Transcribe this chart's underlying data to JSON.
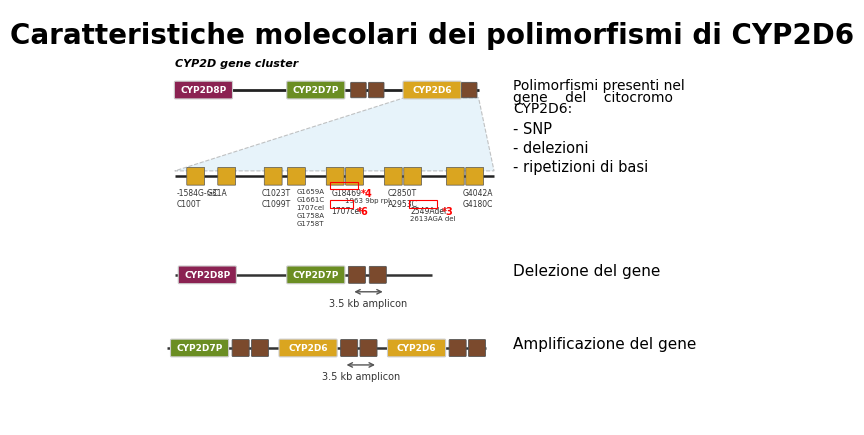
{
  "title": "Caratteristiche molecolari dei polimorfismi di CYP2D6",
  "title_fontsize": 20,
  "bg_color": "#ffffff",
  "text_right_1a": "Polimorfismi presenti nel",
  "text_right_1b": "gene    del    citocromo",
  "text_right_1c": "CYP2D6:",
  "text_right_2": "- SNP",
  "text_right_3": "- delezioni",
  "text_right_4": "- ripetizioni di basi",
  "text_delezione": "Delezione del gene",
  "text_amplificazione": "Amplificazione del gene",
  "label_cluster": "CYP2D gene cluster",
  "color_cyp2d8p": "#8B2252",
  "color_cyp2d7p": "#6B8E23",
  "color_cyp2d6": "#DAA520",
  "color_exon_brown": "#7B4A2D",
  "color_line": "#333333",
  "zoom_fill": "#ddeef8",
  "zoom_edge": "#aaaaaa"
}
